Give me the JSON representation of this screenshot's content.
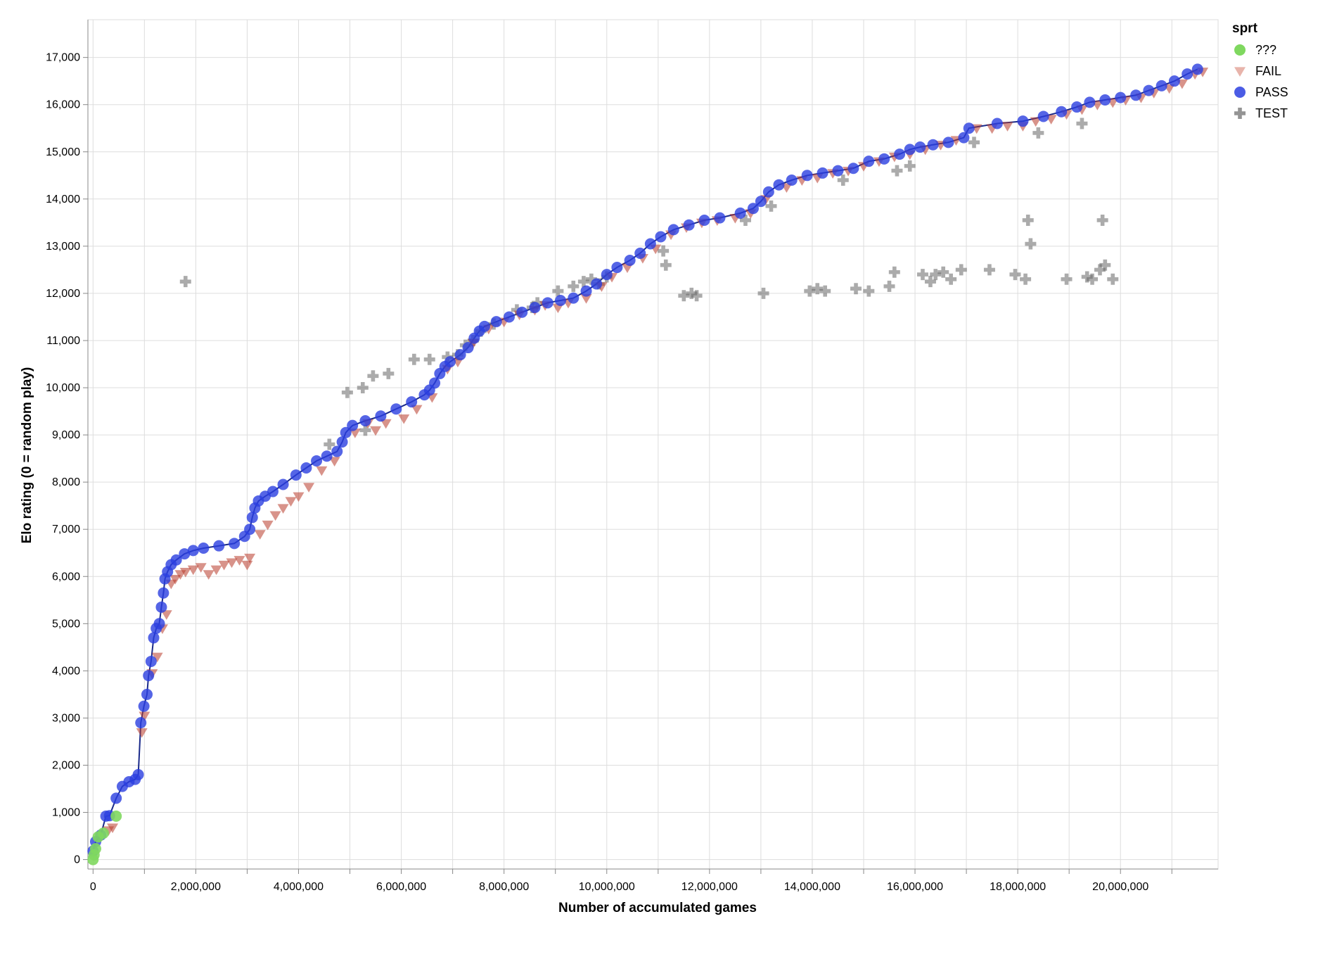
{
  "chart_data": {
    "type": "scatter",
    "title": "",
    "xlabel": "Number of accumulated games",
    "ylabel": "Elo rating (0 = random play)",
    "xlim": [
      -100000,
      21900000
    ],
    "ylim": [
      -200,
      17800
    ],
    "x_ticks": [
      0,
      2000000,
      4000000,
      6000000,
      8000000,
      10000000,
      12000000,
      14000000,
      16000000,
      18000000,
      20000000
    ],
    "x_tick_labels": [
      "0",
      "2,000,000",
      "4,000,000",
      "6,000,000",
      "8,000,000",
      "10,000,000",
      "12,000,000",
      "14,000,000",
      "16,000,000",
      "18,000,000",
      "20,000,000"
    ],
    "y_ticks": [
      0,
      1000,
      2000,
      3000,
      4000,
      5000,
      6000,
      7000,
      8000,
      9000,
      10000,
      11000,
      12000,
      13000,
      14000,
      15000,
      16000,
      17000
    ],
    "y_tick_labels": [
      "0",
      "1,000",
      "2,000",
      "3,000",
      "4,000",
      "5,000",
      "6,000",
      "7,000",
      "8,000",
      "9,000",
      "10,000",
      "11,000",
      "12,000",
      "13,000",
      "14,000",
      "15,000",
      "16,000",
      "17,000"
    ],
    "grid": true,
    "legend": {
      "title": "sprt",
      "placement": "top-right",
      "entries": [
        "???",
        "FAIL",
        "PASS",
        "TEST"
      ]
    },
    "colors": {
      "unknown": "#7fd85f",
      "fail": "#b83a2a",
      "fail_light": "#e8b4ab",
      "pass": "#2b3fe0",
      "test": "#666666",
      "line": "#1a2a8a",
      "grid": "#dddddd",
      "axis": "#888888"
    },
    "series": [
      {
        "name": "???",
        "marker": "circle",
        "points": [
          [
            0,
            0
          ],
          [
            20000,
            100
          ],
          [
            50000,
            230
          ],
          [
            100000,
            480
          ],
          [
            200000,
            560
          ],
          [
            450000,
            920
          ]
        ]
      },
      {
        "name": "PASS",
        "marker": "circle",
        "points": [
          [
            0,
            180
          ],
          [
            50000,
            380
          ],
          [
            150000,
            520
          ],
          [
            250000,
            920
          ],
          [
            320000,
            930
          ],
          [
            450000,
            1300
          ],
          [
            570000,
            1550
          ],
          [
            700000,
            1650
          ],
          [
            820000,
            1700
          ],
          [
            880000,
            1800
          ],
          [
            930000,
            2900
          ],
          [
            990000,
            3250
          ],
          [
            1050000,
            3500
          ],
          [
            1080000,
            3900
          ],
          [
            1130000,
            4200
          ],
          [
            1180000,
            4700
          ],
          [
            1230000,
            4900
          ],
          [
            1290000,
            5000
          ],
          [
            1330000,
            5350
          ],
          [
            1370000,
            5650
          ],
          [
            1400000,
            5950
          ],
          [
            1450000,
            6100
          ],
          [
            1520000,
            6250
          ],
          [
            1620000,
            6350
          ],
          [
            1780000,
            6480
          ],
          [
            1950000,
            6550
          ],
          [
            2150000,
            6600
          ],
          [
            2450000,
            6650
          ],
          [
            2750000,
            6700
          ],
          [
            2950000,
            6850
          ],
          [
            3050000,
            7000
          ],
          [
            3100000,
            7250
          ],
          [
            3150000,
            7450
          ],
          [
            3220000,
            7600
          ],
          [
            3350000,
            7700
          ],
          [
            3500000,
            7800
          ],
          [
            3700000,
            7950
          ],
          [
            3950000,
            8150
          ],
          [
            4150000,
            8300
          ],
          [
            4350000,
            8450
          ],
          [
            4550000,
            8550
          ],
          [
            4750000,
            8650
          ],
          [
            4850000,
            8850
          ],
          [
            4920000,
            9050
          ],
          [
            5050000,
            9200
          ],
          [
            5300000,
            9300
          ],
          [
            5600000,
            9400
          ],
          [
            5900000,
            9550
          ],
          [
            6200000,
            9700
          ],
          [
            6450000,
            9850
          ],
          [
            6550000,
            9950
          ],
          [
            6650000,
            10100
          ],
          [
            6750000,
            10300
          ],
          [
            6850000,
            10450
          ],
          [
            6950000,
            10550
          ],
          [
            7150000,
            10700
          ],
          [
            7300000,
            10850
          ],
          [
            7420000,
            11050
          ],
          [
            7520000,
            11200
          ],
          [
            7620000,
            11300
          ],
          [
            7850000,
            11400
          ],
          [
            8100000,
            11500
          ],
          [
            8350000,
            11600
          ],
          [
            8600000,
            11700
          ],
          [
            8850000,
            11800
          ],
          [
            9100000,
            11850
          ],
          [
            9350000,
            11900
          ],
          [
            9600000,
            12050
          ],
          [
            9800000,
            12200
          ],
          [
            10000000,
            12400
          ],
          [
            10200000,
            12550
          ],
          [
            10450000,
            12700
          ],
          [
            10650000,
            12850
          ],
          [
            10850000,
            13050
          ],
          [
            11050000,
            13200
          ],
          [
            11300000,
            13350
          ],
          [
            11600000,
            13450
          ],
          [
            11900000,
            13550
          ],
          [
            12200000,
            13600
          ],
          [
            12600000,
            13700
          ],
          [
            12850000,
            13800
          ],
          [
            13000000,
            13950
          ],
          [
            13150000,
            14150
          ],
          [
            13350000,
            14300
          ],
          [
            13600000,
            14400
          ],
          [
            13900000,
            14500
          ],
          [
            14200000,
            14550
          ],
          [
            14500000,
            14600
          ],
          [
            14800000,
            14650
          ],
          [
            15100000,
            14800
          ],
          [
            15400000,
            14850
          ],
          [
            15700000,
            14950
          ],
          [
            15900000,
            15050
          ],
          [
            16100000,
            15100
          ],
          [
            16350000,
            15150
          ],
          [
            16650000,
            15200
          ],
          [
            16950000,
            15300
          ],
          [
            17050000,
            15500
          ],
          [
            17600000,
            15600
          ],
          [
            18100000,
            15650
          ],
          [
            18500000,
            15750
          ],
          [
            18850000,
            15850
          ],
          [
            19150000,
            15950
          ],
          [
            19400000,
            16050
          ],
          [
            19700000,
            16100
          ],
          [
            20000000,
            16150
          ],
          [
            20300000,
            16200
          ],
          [
            20550000,
            16300
          ],
          [
            20800000,
            16400
          ],
          [
            21050000,
            16500
          ],
          [
            21300000,
            16650
          ],
          [
            21500000,
            16750
          ]
        ]
      },
      {
        "name": "FAIL",
        "marker": "triangle-down",
        "points": [
          [
            300000,
            620
          ],
          [
            380000,
            680
          ],
          [
            950000,
            2700
          ],
          [
            1000000,
            3050
          ],
          [
            1150000,
            3950
          ],
          [
            1250000,
            4300
          ],
          [
            1350000,
            4900
          ],
          [
            1430000,
            5200
          ],
          [
            1520000,
            5850
          ],
          [
            1600000,
            5950
          ],
          [
            1700000,
            6050
          ],
          [
            1800000,
            6100
          ],
          [
            1950000,
            6150
          ],
          [
            2100000,
            6200
          ],
          [
            2250000,
            6050
          ],
          [
            2400000,
            6150
          ],
          [
            2550000,
            6250
          ],
          [
            2700000,
            6300
          ],
          [
            2850000,
            6350
          ],
          [
            3000000,
            6250
          ],
          [
            3050000,
            6400
          ],
          [
            3250000,
            6900
          ],
          [
            3400000,
            7100
          ],
          [
            3550000,
            7300
          ],
          [
            3700000,
            7450
          ],
          [
            3850000,
            7600
          ],
          [
            4000000,
            7700
          ],
          [
            4200000,
            7900
          ],
          [
            4450000,
            8250
          ],
          [
            4700000,
            8450
          ],
          [
            5100000,
            9050
          ],
          [
            5350000,
            9250
          ],
          [
            5500000,
            9100
          ],
          [
            5700000,
            9250
          ],
          [
            6050000,
            9350
          ],
          [
            6300000,
            9550
          ],
          [
            6600000,
            9800
          ],
          [
            6900000,
            10400
          ],
          [
            7100000,
            10550
          ],
          [
            7400000,
            10950
          ],
          [
            7700000,
            11250
          ],
          [
            8000000,
            11400
          ],
          [
            8300000,
            11550
          ],
          [
            8600000,
            11650
          ],
          [
            8800000,
            11750
          ],
          [
            9050000,
            11700
          ],
          [
            9250000,
            11800
          ],
          [
            9600000,
            11900
          ],
          [
            9900000,
            12150
          ],
          [
            10100000,
            12350
          ],
          [
            10400000,
            12550
          ],
          [
            10700000,
            12750
          ],
          [
            10950000,
            12950
          ],
          [
            11250000,
            13250
          ],
          [
            11550000,
            13400
          ],
          [
            11850000,
            13500
          ],
          [
            12150000,
            13550
          ],
          [
            12500000,
            13600
          ],
          [
            12800000,
            13700
          ],
          [
            13100000,
            14000
          ],
          [
            13500000,
            14250
          ],
          [
            13800000,
            14400
          ],
          [
            14100000,
            14450
          ],
          [
            14400000,
            14550
          ],
          [
            14700000,
            14600
          ],
          [
            15000000,
            14700
          ],
          [
            15300000,
            14800
          ],
          [
            15600000,
            14900
          ],
          [
            15900000,
            14950
          ],
          [
            16200000,
            15050
          ],
          [
            16500000,
            15150
          ],
          [
            16800000,
            15250
          ],
          [
            17200000,
            15500
          ],
          [
            17500000,
            15500
          ],
          [
            17800000,
            15550
          ],
          [
            18100000,
            15550
          ],
          [
            18350000,
            15650
          ],
          [
            18650000,
            15700
          ],
          [
            18950000,
            15800
          ],
          [
            19250000,
            15900
          ],
          [
            19550000,
            16000
          ],
          [
            19850000,
            16050
          ],
          [
            20100000,
            16100
          ],
          [
            20400000,
            16150
          ],
          [
            20650000,
            16250
          ],
          [
            20950000,
            16350
          ],
          [
            21200000,
            16450
          ],
          [
            21450000,
            16650
          ],
          [
            21600000,
            16700
          ]
        ]
      },
      {
        "name": "TEST",
        "marker": "cross",
        "points": [
          [
            1800000,
            12250
          ],
          [
            4600000,
            8800
          ],
          [
            4950000,
            9900
          ],
          [
            5250000,
            10000
          ],
          [
            5450000,
            10250
          ],
          [
            5750000,
            10300
          ],
          [
            5300000,
            9100
          ],
          [
            6250000,
            10600
          ],
          [
            6550000,
            10600
          ],
          [
            6900000,
            10650
          ],
          [
            7100000,
            10700
          ],
          [
            7250000,
            10900
          ],
          [
            7400000,
            11000
          ],
          [
            7550000,
            11200
          ],
          [
            7800000,
            11350
          ],
          [
            8250000,
            11650
          ],
          [
            8550000,
            11700
          ],
          [
            8650000,
            11800
          ],
          [
            9050000,
            12050
          ],
          [
            9350000,
            12150
          ],
          [
            9550000,
            12250
          ],
          [
            9700000,
            12300
          ],
          [
            9850000,
            12200
          ],
          [
            10000000,
            12350
          ],
          [
            11100000,
            12900
          ],
          [
            11150000,
            12600
          ],
          [
            11500000,
            11950
          ],
          [
            11650000,
            12000
          ],
          [
            11750000,
            11950
          ],
          [
            12700000,
            13550
          ],
          [
            13050000,
            12000
          ],
          [
            13200000,
            13850
          ],
          [
            13950000,
            12050
          ],
          [
            14100000,
            12100
          ],
          [
            14250000,
            12050
          ],
          [
            14600000,
            14400
          ],
          [
            14850000,
            12100
          ],
          [
            15100000,
            12050
          ],
          [
            15500000,
            12150
          ],
          [
            15600000,
            12450
          ],
          [
            15650000,
            14600
          ],
          [
            15900000,
            14700
          ],
          [
            16150000,
            12400
          ],
          [
            16300000,
            12250
          ],
          [
            16400000,
            12400
          ],
          [
            16550000,
            12450
          ],
          [
            16700000,
            12300
          ],
          [
            16900000,
            12500
          ],
          [
            17150000,
            15200
          ],
          [
            17450000,
            12500
          ],
          [
            17950000,
            12400
          ],
          [
            18150000,
            12300
          ],
          [
            18200000,
            13550
          ],
          [
            18250000,
            13050
          ],
          [
            18400000,
            15400
          ],
          [
            18950000,
            12300
          ],
          [
            19250000,
            15600
          ],
          [
            19350000,
            12350
          ],
          [
            19450000,
            12300
          ],
          [
            19600000,
            12500
          ],
          [
            19650000,
            13550
          ],
          [
            19700000,
            12600
          ],
          [
            19850000,
            12300
          ]
        ]
      }
    ]
  }
}
